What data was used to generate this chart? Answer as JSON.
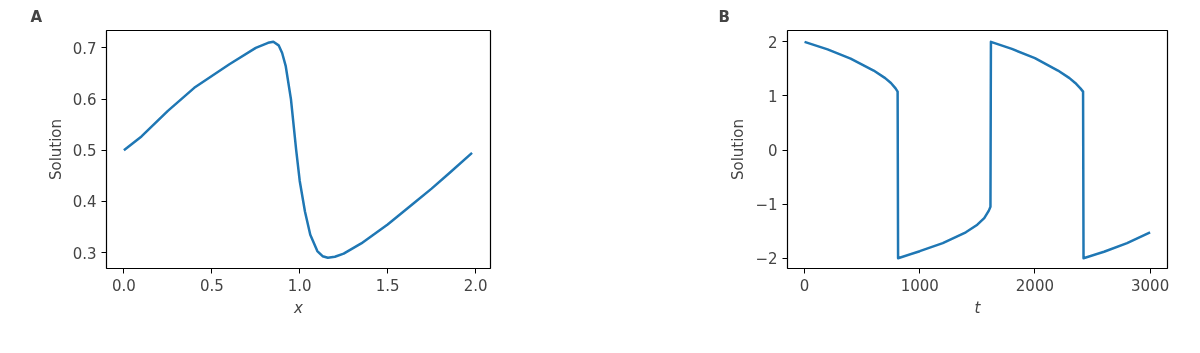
{
  "chart_data": [
    {
      "type": "line",
      "title": "A",
      "xlabel": "x",
      "ylabel": "Solution",
      "xlim": [
        -0.099,
        2.085
      ],
      "ylim": [
        0.269,
        0.734
      ],
      "xticks": [
        {
          "value": 0,
          "label": "0.0"
        },
        0.5,
        {
          "value": 1,
          "label": "1.0"
        },
        1.5,
        {
          "value": 2,
          "label": "2.0"
        }
      ],
      "yticks": [
        0.3,
        0.4,
        0.5,
        0.6,
        0.7
      ],
      "grid": false,
      "line_style": "solid",
      "series": [
        {
          "color": "#1f77b4",
          "x": [
            0,
            0.1,
            0.25,
            0.4,
            0.5,
            0.6,
            0.75,
            0.82,
            0.85,
            0.88,
            0.9,
            0.92,
            0.95,
            0.98,
            1.0,
            1.03,
            1.06,
            1.1,
            1.13,
            1.16,
            1.2,
            1.25,
            1.35,
            1.5,
            1.65,
            1.75,
            1.85,
            1.98
          ],
          "values": [
            0.5,
            0.527,
            0.577,
            0.622,
            0.645,
            0.668,
            0.7,
            0.71,
            0.712,
            0.705,
            0.69,
            0.665,
            0.6,
            0.5,
            0.44,
            0.38,
            0.335,
            0.303,
            0.293,
            0.29,
            0.292,
            0.298,
            0.318,
            0.355,
            0.397,
            0.425,
            0.455,
            0.495
          ]
        }
      ]
    },
    {
      "type": "line",
      "title": "B",
      "xlabel": "t",
      "ylabel": "Solution",
      "xlim": [
        -148,
        3151
      ],
      "ylim": [
        -2.19,
        2.21
      ],
      "xticks": [
        0,
        1000,
        2000,
        3000
      ],
      "yticks": [
        {
          "value": -2,
          "label": "−2"
        },
        {
          "value": -1,
          "label": "−1"
        },
        0,
        1,
        2
      ],
      "grid": false,
      "line_style": "solid",
      "series": [
        {
          "color": "#1f77b4",
          "x": [
            0,
            200,
            400,
            600,
            700,
            750,
            790,
            808,
            812,
            1000,
            1200,
            1400,
            1500,
            1560,
            1600,
            1614,
            1618,
            1800,
            2000,
            2200,
            2300,
            2350,
            2395,
            2418,
            2422,
            2600,
            2800,
            3000
          ],
          "values": [
            2.0,
            1.86,
            1.69,
            1.47,
            1.33,
            1.24,
            1.14,
            1.08,
            -2.0,
            -1.87,
            -1.72,
            -1.52,
            -1.38,
            -1.26,
            -1.12,
            -1.05,
            2.0,
            1.87,
            1.7,
            1.47,
            1.33,
            1.24,
            1.14,
            1.08,
            -2.0,
            -1.88,
            -1.72,
            -1.52
          ]
        }
      ]
    }
  ]
}
